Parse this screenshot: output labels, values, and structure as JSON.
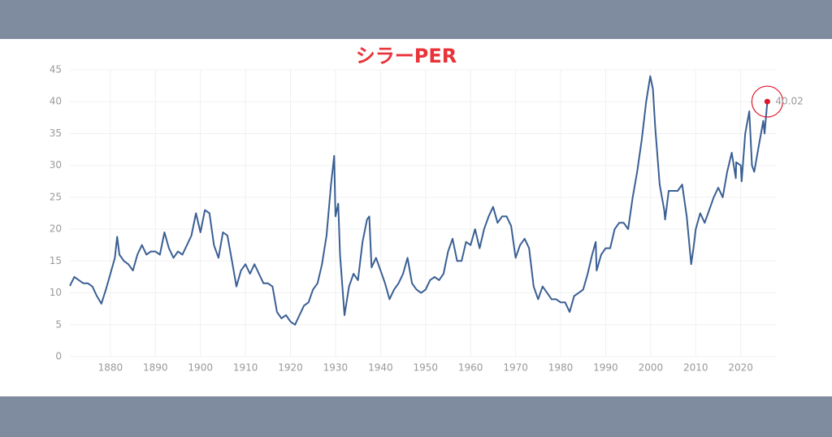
{
  "chart_data": {
    "type": "line",
    "title": "シラーPER",
    "x": [
      1871,
      1872,
      1873,
      1874,
      1875,
      1876,
      1877,
      1878,
      1879,
      1880,
      1881,
      1881.5,
      1882,
      1883,
      1884,
      1885,
      1886,
      1887,
      1888,
      1889,
      1890,
      1891,
      1892,
      1893,
      1894,
      1895,
      1896,
      1897,
      1898,
      1899,
      1900,
      1901,
      1902,
      1903,
      1904,
      1905,
      1906,
      1907,
      1908,
      1909,
      1910,
      1911,
      1912,
      1913,
      1914,
      1915,
      1916,
      1917,
      1918,
      1919,
      1920,
      1921,
      1922,
      1923,
      1924,
      1925,
      1926,
      1927,
      1928,
      1929,
      1929.7,
      1930,
      1930.6,
      1931,
      1932,
      1933,
      1934,
      1935,
      1936,
      1937,
      1937.5,
      1938,
      1939,
      1940,
      1941,
      1942,
      1943,
      1944,
      1945,
      1946,
      1947,
      1948,
      1949,
      1950,
      1951,
      1952,
      1953,
      1954,
      1955,
      1956,
      1957,
      1958,
      1959,
      1960,
      1961,
      1962,
      1963,
      1964,
      1965,
      1966,
      1967,
      1968,
      1969,
      1970,
      1971,
      1972,
      1973,
      1974,
      1975,
      1976,
      1977,
      1978,
      1979,
      1980,
      1981,
      1982,
      1983,
      1984,
      1985,
      1986,
      1987,
      1987.8,
      1988,
      1989,
      1990,
      1991,
      1992,
      1993,
      1994,
      1995,
      1996,
      1997,
      1998,
      1999,
      1999.9,
      2000.5,
      2001,
      2002,
      2003,
      2003.2,
      2004,
      2005,
      2006,
      2007,
      2008,
      2009,
      2009.5,
      2010,
      2011,
      2012,
      2013,
      2014,
      2015,
      2016,
      2017,
      2018,
      2018.9,
      2019,
      2020,
      2020.2,
      2021,
      2021.9,
      2022.5,
      2023,
      2024,
      2025,
      2025.3,
      2025.9
    ],
    "values": [
      11.1,
      12.5,
      12,
      11.5,
      11.5,
      11,
      9.5,
      8.3,
      10.5,
      13,
      15.5,
      18.8,
      16,
      15,
      14.5,
      13.5,
      16,
      17.5,
      16,
      16.5,
      16.5,
      16,
      19.5,
      17,
      15.5,
      16.5,
      16,
      17.5,
      19,
      22.5,
      19.5,
      23,
      22.5,
      17.5,
      15.5,
      19.5,
      19,
      15,
      11,
      13.5,
      14.5,
      13,
      14.5,
      13,
      11.5,
      11.5,
      11,
      7,
      6,
      6.5,
      5.5,
      5,
      6.5,
      8,
      8.5,
      10.5,
      11.5,
      14.5,
      19,
      27,
      31.5,
      22,
      24,
      16,
      6.5,
      11,
      13,
      12,
      18,
      21.5,
      22,
      14,
      15.5,
      13.5,
      11.5,
      9,
      10.5,
      11.5,
      13,
      15.5,
      11.5,
      10.5,
      10,
      10.5,
      12,
      12.5,
      12,
      13,
      16.5,
      18.5,
      15,
      15,
      18,
      17.5,
      20,
      17,
      20,
      22,
      23.5,
      21,
      22,
      22,
      20.5,
      15.5,
      17.5,
      18.5,
      17,
      11,
      9,
      11,
      10,
      9,
      9,
      8.5,
      8.5,
      7,
      9.5,
      10,
      10.5,
      13,
      16,
      18,
      13.5,
      16,
      17,
      17,
      20,
      21,
      21,
      20,
      25,
      29,
      34,
      40,
      44,
      42,
      36,
      27,
      23,
      21.5,
      26,
      26,
      26,
      27,
      22,
      14.5,
      17,
      20,
      22.5,
      21,
      23,
      25,
      26.5,
      25,
      29,
      32,
      28,
      30.5,
      30,
      27.5,
      35,
      38.5,
      30,
      29,
      33,
      37,
      35,
      40.02
    ],
    "color": "#3a5f94",
    "highlight_color": "#e0162b",
    "xlim": [
      1871,
      2028
    ],
    "ylim": [
      0,
      45
    ],
    "xticks": [
      1880,
      1890,
      1900,
      1910,
      1920,
      1930,
      1940,
      1950,
      1960,
      1970,
      1980,
      1990,
      2000,
      2010,
      2020
    ],
    "yticks": [
      0,
      5,
      10,
      15,
      20,
      25,
      30,
      35,
      40,
      45
    ],
    "grid": true
  }
}
